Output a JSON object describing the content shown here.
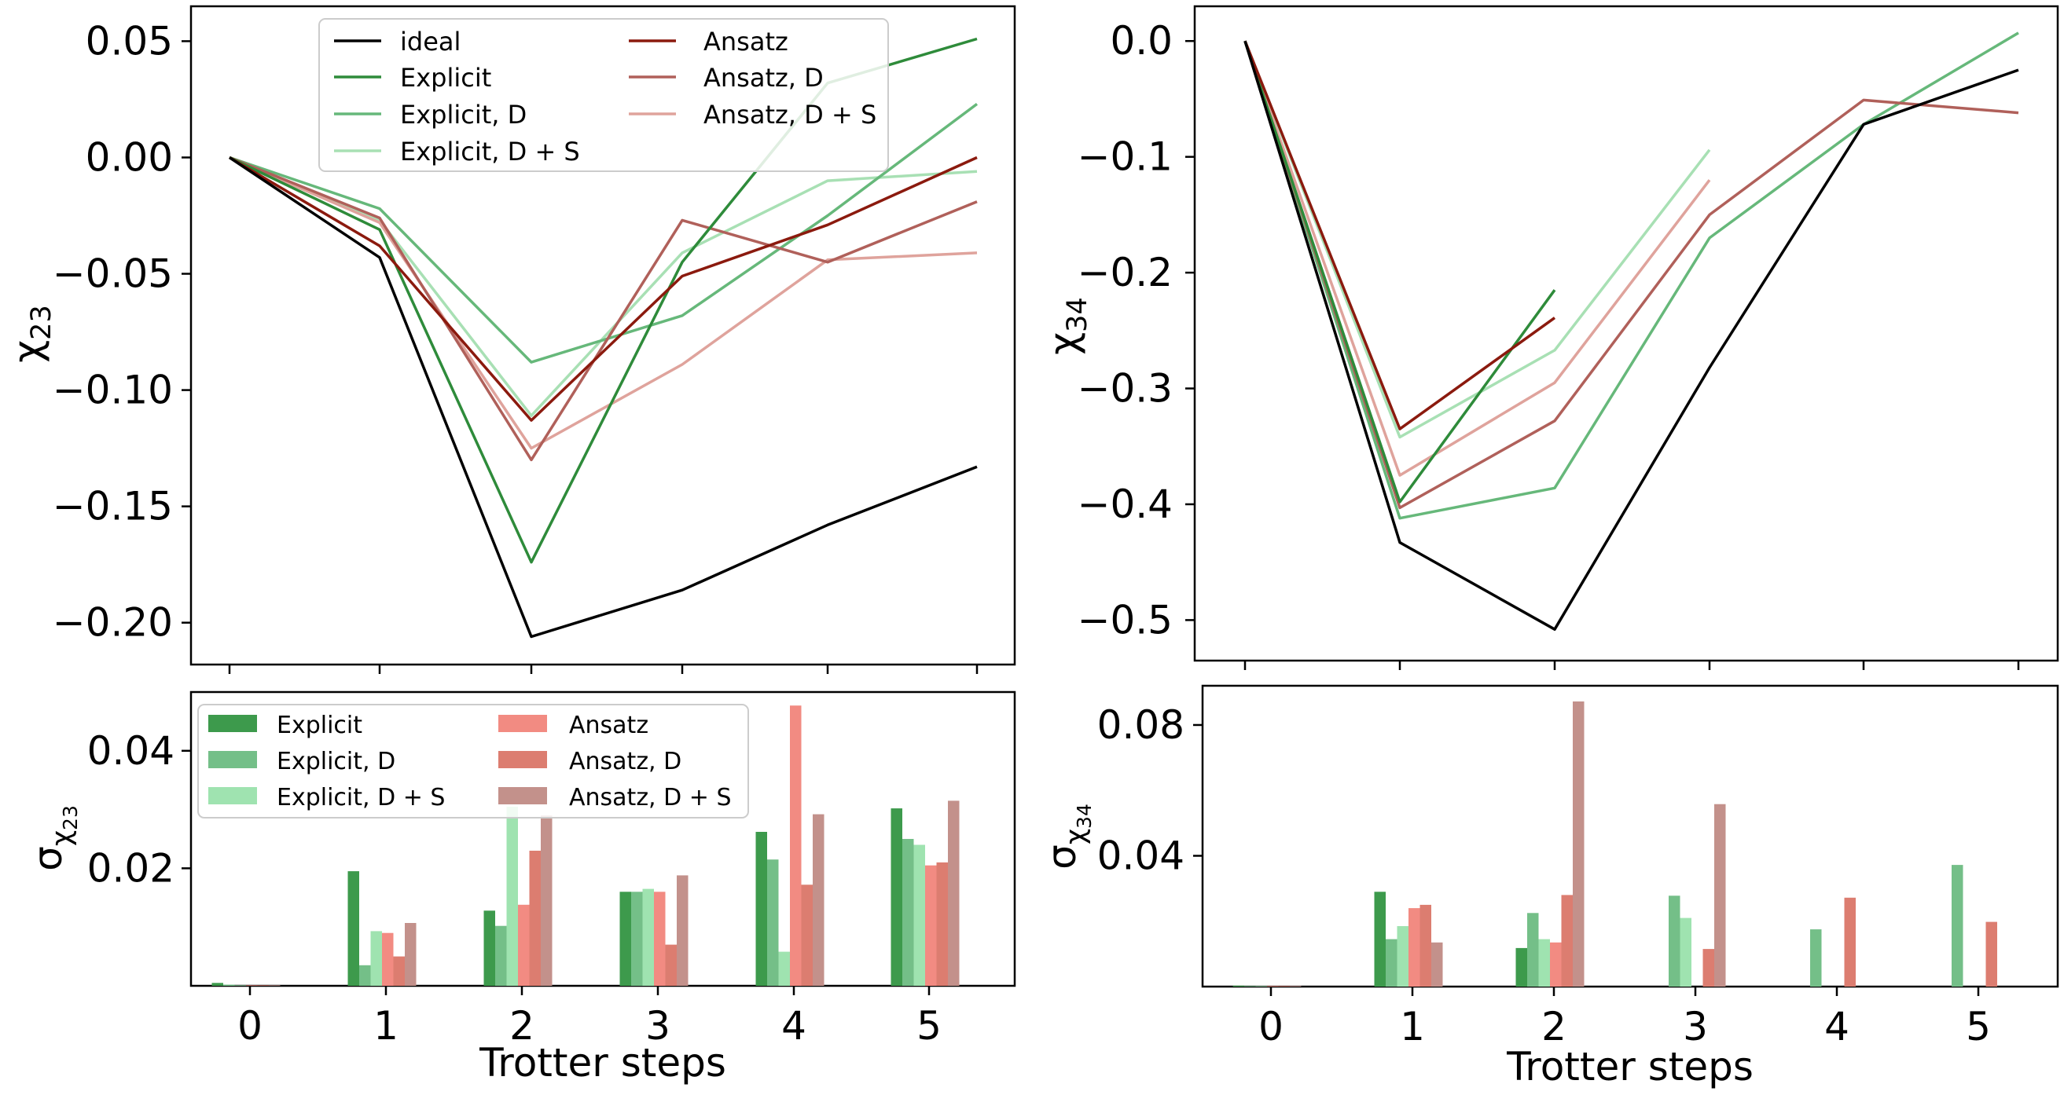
{
  "figure": {
    "colors": {
      "ideal": "#000000",
      "explicit": "#2e8b3a",
      "explicit_d": "#66b87a",
      "explicit_ds": "#a8e0b4",
      "ansatz": "#8b1a0e",
      "ansatz_d": "#b0605a",
      "ansatz_ds": "#dfa39c",
      "bar_explicit": "#3d9a4c",
      "bar_explicit_d": "#74bf88",
      "bar_explicit_ds": "#9fe3b0",
      "bar_ansatz": "#f28b82",
      "bar_ansatz_d": "#dc7d70",
      "bar_ansatz_ds": "#c3918b"
    }
  },
  "chart_data": [
    {
      "id": "top_left",
      "type": "line",
      "ylabel_main": "χ",
      "ylabel_sub": "23",
      "x": [
        0,
        1,
        2,
        3,
        4,
        5
      ],
      "ylim": [
        -0.218,
        0.065
      ],
      "yticks": [
        0.05,
        0.0,
        -0.05,
        -0.1,
        -0.15,
        -0.2
      ],
      "ytick_labels": [
        "0.05",
        "0.00",
        "−0.05",
        "−0.10",
        "−0.15",
        "−0.20"
      ],
      "legend": {
        "col1": [
          "ideal",
          "Explicit",
          "Explicit, D",
          "Explicit, D + S"
        ],
        "col2": [
          "Ansatz",
          "Ansatz, D",
          "Ansatz, D + S"
        ]
      },
      "series": [
        {
          "name": "ideal",
          "color_key": "ideal",
          "values": [
            0,
            -0.043,
            -0.206,
            -0.186,
            -0.158,
            -0.133
          ]
        },
        {
          "name": "Explicit",
          "color_key": "explicit",
          "values": [
            0,
            -0.031,
            -0.174,
            -0.045,
            0.032,
            0.051
          ]
        },
        {
          "name": "Explicit, D",
          "color_key": "explicit_d",
          "values": [
            0,
            -0.022,
            -0.088,
            -0.068,
            -0.025,
            0.023
          ]
        },
        {
          "name": "Explicit, D + S",
          "color_key": "explicit_ds",
          "values": [
            0,
            -0.027,
            -0.111,
            -0.041,
            -0.01,
            -0.006
          ]
        },
        {
          "name": "Ansatz",
          "color_key": "ansatz",
          "values": [
            0,
            -0.038,
            -0.113,
            -0.051,
            -0.029,
            0.0
          ]
        },
        {
          "name": "Ansatz, D",
          "color_key": "ansatz_d",
          "values": [
            0,
            -0.026,
            -0.13,
            -0.027,
            -0.045,
            -0.019
          ]
        },
        {
          "name": "Ansatz, D + S",
          "color_key": "ansatz_ds",
          "values": [
            0,
            -0.028,
            -0.125,
            -0.089,
            -0.044,
            -0.041
          ]
        }
      ]
    },
    {
      "id": "top_right",
      "type": "line",
      "ylabel_main": "χ",
      "ylabel_sub": "34",
      "x": [
        0,
        1,
        2,
        3,
        4,
        5
      ],
      "ylim": [
        -0.535,
        0.03
      ],
      "yticks": [
        0.0,
        -0.1,
        -0.2,
        -0.3,
        -0.4,
        -0.5
      ],
      "ytick_labels": [
        "0.0",
        "−0.1",
        "−0.2",
        "−0.3",
        "−0.4",
        "−0.5"
      ],
      "series": [
        {
          "name": "ideal",
          "color_key": "ideal",
          "x": [
            0,
            1,
            2,
            3,
            4,
            5
          ],
          "values": [
            0,
            -0.433,
            -0.508,
            -0.282,
            -0.072,
            -0.025
          ]
        },
        {
          "name": "Explicit",
          "color_key": "explicit",
          "x": [
            0,
            1,
            2
          ],
          "values": [
            0,
            -0.398,
            -0.215
          ]
        },
        {
          "name": "Explicit, D",
          "color_key": "explicit_d",
          "x": [
            0,
            1,
            2,
            3,
            4,
            5
          ],
          "values": [
            0,
            -0.412,
            -0.386,
            -0.17,
            -0.072,
            0.007
          ]
        },
        {
          "name": "Explicit, D + S",
          "color_key": "explicit_ds",
          "x": [
            0,
            1,
            2,
            3
          ],
          "values": [
            0,
            -0.342,
            -0.267,
            -0.094
          ]
        },
        {
          "name": "Ansatz",
          "color_key": "ansatz",
          "x": [
            0,
            1,
            2
          ],
          "values": [
            0,
            -0.335,
            -0.239
          ]
        },
        {
          "name": "Ansatz, D",
          "color_key": "ansatz_d",
          "x": [
            0,
            1,
            2,
            3,
            4,
            5
          ],
          "values": [
            0,
            -0.403,
            -0.328,
            -0.15,
            -0.051,
            -0.062
          ]
        },
        {
          "name": "Ansatz, D + S",
          "color_key": "ansatz_ds",
          "x": [
            0,
            1,
            2,
            3
          ],
          "values": [
            0,
            -0.375,
            -0.295,
            -0.12
          ]
        }
      ]
    },
    {
      "id": "bottom_left",
      "type": "bar",
      "ylabel_main": "σ",
      "ylabel_sub": "χ",
      "ylabel_subsub": "23",
      "xlabel": "Trotter steps",
      "categories": [
        "0",
        "1",
        "2",
        "3",
        "4",
        "5"
      ],
      "ylim": [
        0,
        0.05
      ],
      "yticks": [
        0.02,
        0.04
      ],
      "ytick_labels": [
        "0.02",
        "0.04"
      ],
      "legend": {
        "col1": [
          "Explicit",
          "Explicit, D",
          "Explicit, D + S"
        ],
        "col2": [
          "Ansatz",
          "Ansatz, D",
          "Ansatz, D + S"
        ]
      },
      "series": [
        {
          "name": "Explicit",
          "color_key": "bar_explicit",
          "values": [
            0.0005,
            0.0195,
            0.0128,
            0.016,
            0.0262,
            0.0302
          ]
        },
        {
          "name": "Explicit, D",
          "color_key": "bar_explicit_d",
          "values": [
            0.0002,
            0.0035,
            0.0102,
            0.016,
            0.0215,
            0.025
          ]
        },
        {
          "name": "Explicit, D + S",
          "color_key": "bar_explicit_ds",
          "values": [
            0.0001,
            0.0093,
            0.0305,
            0.0165,
            0.0058,
            0.024
          ]
        },
        {
          "name": "Ansatz",
          "color_key": "bar_ansatz",
          "values": [
            0.0001,
            0.009,
            0.0138,
            0.016,
            0.0477,
            0.0205
          ]
        },
        {
          "name": "Ansatz, D",
          "color_key": "bar_ansatz_d",
          "values": [
            0.0001,
            0.005,
            0.023,
            0.007,
            0.0172,
            0.021
          ]
        },
        {
          "name": "Ansatz, D + S",
          "color_key": "bar_ansatz_ds",
          "values": [
            0.0001,
            0.0107,
            0.029,
            0.0188,
            0.0292,
            0.0315
          ]
        }
      ]
    },
    {
      "id": "bottom_right",
      "type": "bar",
      "ylabel_main": "σ",
      "ylabel_sub": "χ",
      "ylabel_subsub": "34",
      "xlabel": "Trotter steps",
      "categories": [
        "0",
        "1",
        "2",
        "3",
        "4",
        "5"
      ],
      "ylim": [
        0,
        0.092
      ],
      "yticks": [
        0.04,
        0.08
      ],
      "ytick_labels": [
        "0.04",
        "0.08"
      ],
      "series": [
        {
          "name": "Explicit",
          "color_key": "bar_explicit",
          "values": [
            0.0003,
            0.029,
            0.0118,
            0,
            0,
            0
          ]
        },
        {
          "name": "Explicit, D",
          "color_key": "bar_explicit_d",
          "values": [
            0.0002,
            0.0145,
            0.0225,
            0.0278,
            0.0175,
            0.0372
          ]
        },
        {
          "name": "Explicit, D + S",
          "color_key": "bar_explicit_ds",
          "values": [
            0.0002,
            0.0185,
            0.0145,
            0.021,
            0,
            0
          ]
        },
        {
          "name": "Ansatz",
          "color_key": "bar_ansatz",
          "values": [
            0.0002,
            0.024,
            0.0135,
            0,
            0,
            0
          ]
        },
        {
          "name": "Ansatz, D",
          "color_key": "bar_ansatz_d",
          "values": [
            0.0002,
            0.025,
            0.028,
            0.0115,
            0.0272,
            0.0198
          ]
        },
        {
          "name": "Ansatz, D + S",
          "color_key": "bar_ansatz_ds",
          "values": [
            0.0002,
            0.0135,
            0.0872,
            0.0558,
            0,
            0
          ]
        }
      ]
    }
  ]
}
